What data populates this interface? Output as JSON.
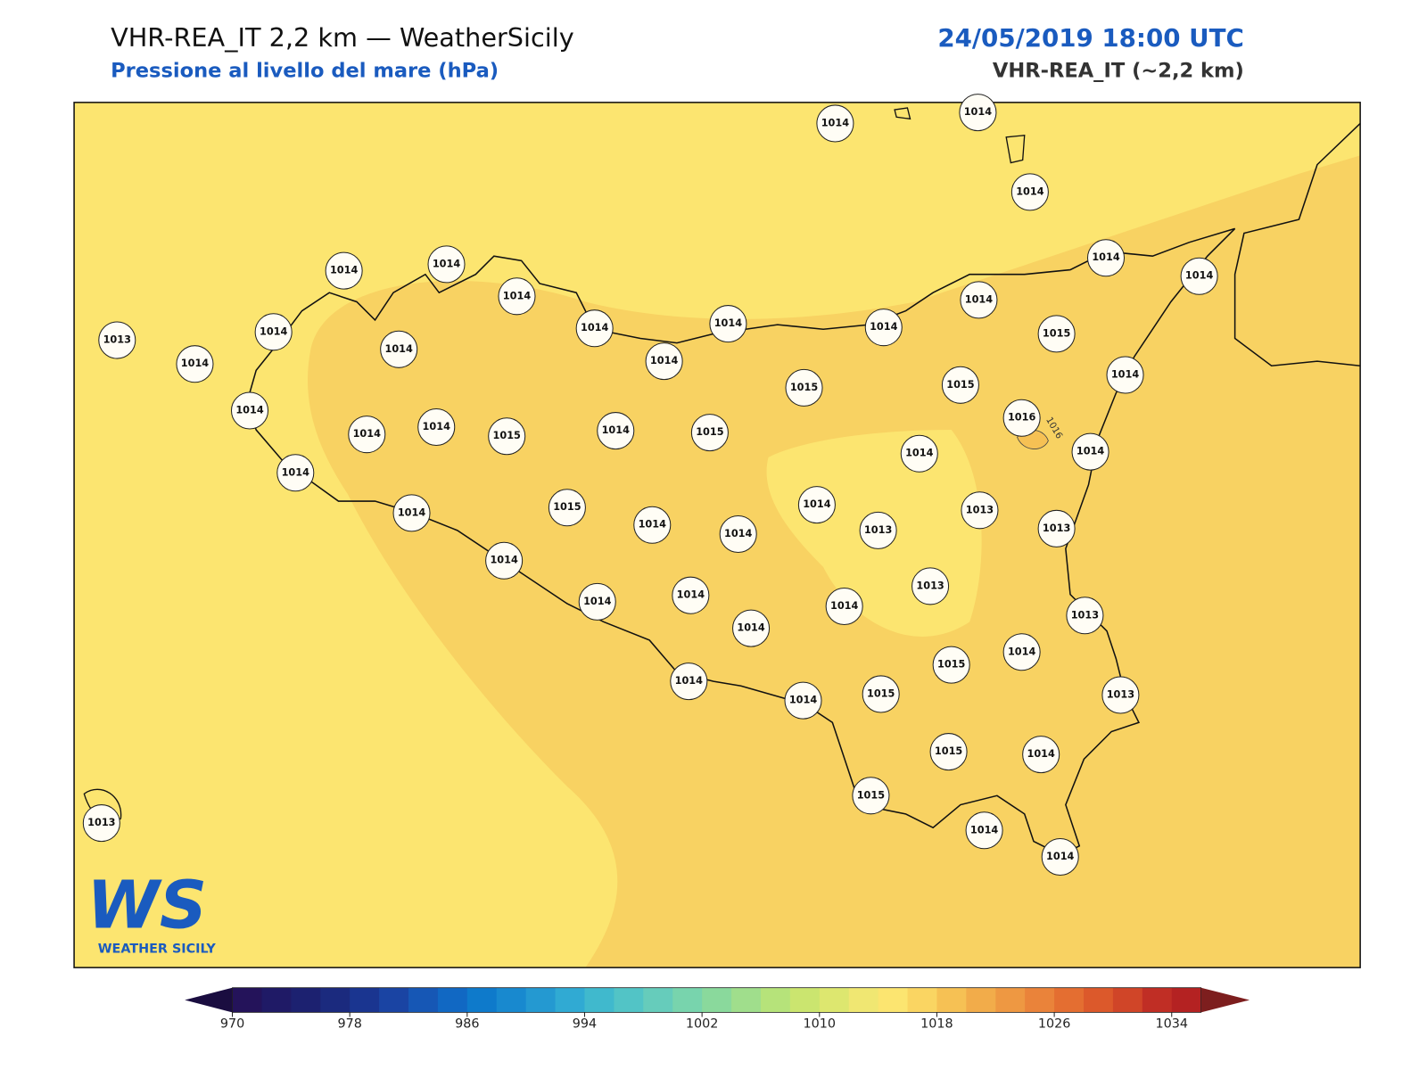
{
  "header": {
    "title": "VHR-REA_IT 2,2 km — WeatherSicily",
    "subtitle": "Pressione al livello del mare (hPa)",
    "datetime": "24/05/2019 18:00 UTC",
    "model": "VHR-REA_IT (~2,2 km)"
  },
  "map": {
    "stations": [
      1014,
      1014,
      1014,
      1014,
      1014,
      1014,
      1014,
      1014,
      1014,
      1014,
      1014,
      1014,
      1014,
      1015,
      1013,
      1014,
      1014,
      1014,
      1014,
      1015,
      1015,
      1014,
      1016,
      1014,
      1014,
      1015,
      1014,
      1015,
      1014,
      1014,
      1014,
      1014,
      1015,
      1014,
      1014,
      1014,
      1013,
      1013,
      1013,
      1014,
      1014,
      1014,
      1013,
      1014,
      1014,
      1013,
      1015,
      1014,
      1014,
      1014,
      1015,
      1013,
      1015,
      1014,
      1015,
      1014,
      1014,
      1013
    ],
    "contour_label": "1016"
  },
  "logo": {
    "mark": "WS",
    "text": "WEATHER SICILY"
  },
  "colorbar": {
    "range": [
      970,
      1036
    ],
    "ticks": [
      970,
      978,
      986,
      994,
      1002,
      1010,
      1018,
      1026,
      1034
    ],
    "colors": [
      "#24135a",
      "#1f1a66",
      "#1c2170",
      "#1b2a7e",
      "#1a3590",
      "#1a44a3",
      "#1657b5",
      "#1168c3",
      "#0e7acb",
      "#1889cf",
      "#2499d1",
      "#30aad3",
      "#40b9cd",
      "#52c4c6",
      "#66ccbb",
      "#78d4ad",
      "#8ad99c",
      "#a0de8c",
      "#b6e37a",
      "#cbe56f",
      "#dde76f",
      "#f0e772",
      "#fce570",
      "#fad562",
      "#f6c154",
      "#f2ac4a",
      "#ee9842",
      "#ea833a",
      "#e46e31",
      "#dc592b",
      "#d04528",
      "#c02e25",
      "#b42222"
    ],
    "under_color": "#1a0d40",
    "over_color": "#7d1e1e"
  }
}
